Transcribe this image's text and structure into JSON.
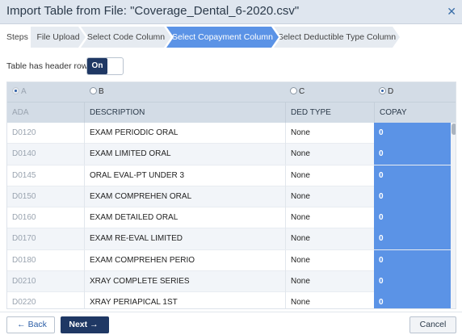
{
  "dialog": {
    "title": "Import Table from File: \"Coverage_Dental_6-2020.csv\"",
    "close_icon": "close-icon"
  },
  "steps": {
    "label": "Steps",
    "items": [
      {
        "label": "File Upload",
        "state": "done"
      },
      {
        "label": "Select Code Column",
        "state": "done"
      },
      {
        "label": "Select Copayment Column",
        "state": "active"
      },
      {
        "label": "Select Deductible Type Column",
        "state": "pending"
      }
    ]
  },
  "header_row": {
    "label": "Table has header row",
    "toggle_label": "On",
    "value": true
  },
  "radios": [
    {
      "label": "A",
      "selected": true,
      "disabled": true
    },
    {
      "label": "B",
      "selected": false,
      "disabled": false
    },
    {
      "label": "C",
      "selected": false,
      "disabled": false
    },
    {
      "label": "D",
      "selected": true,
      "disabled": false
    }
  ],
  "table": {
    "columns": [
      "ADA",
      "DESCRIPTION",
      "DED TYPE",
      "COPAY"
    ],
    "rows": [
      [
        "D0120",
        "EXAM PERIODIC ORAL",
        "None",
        "0"
      ],
      [
        "D0140",
        "EXAM LIMITED ORAL",
        "None",
        "0"
      ],
      [
        "D0145",
        "ORAL EVAL-PT UNDER 3",
        "None",
        "0"
      ],
      [
        "D0150",
        "EXAM COMPREHEN ORAL",
        "None",
        "0"
      ],
      [
        "D0160",
        "EXAM DETAILED ORAL",
        "None",
        "0"
      ],
      [
        "D0170",
        "EXAM RE-EVAL LIMITED",
        "None",
        "0"
      ],
      [
        "D0180",
        "EXAM COMPREHEN PERIO",
        "None",
        "0"
      ],
      [
        "D0210",
        "XRAY COMPLETE SERIES",
        "None",
        "0"
      ],
      [
        "D0220",
        "XRAY PERIAPICAL 1ST",
        "None",
        "0"
      ]
    ]
  },
  "footer": {
    "back_label": "Back",
    "next_label": "Next",
    "cancel_label": "Cancel"
  },
  "colors": {
    "accent": "#5b93e6",
    "primary": "#1f3864",
    "header_bg": "#d3dce6"
  }
}
